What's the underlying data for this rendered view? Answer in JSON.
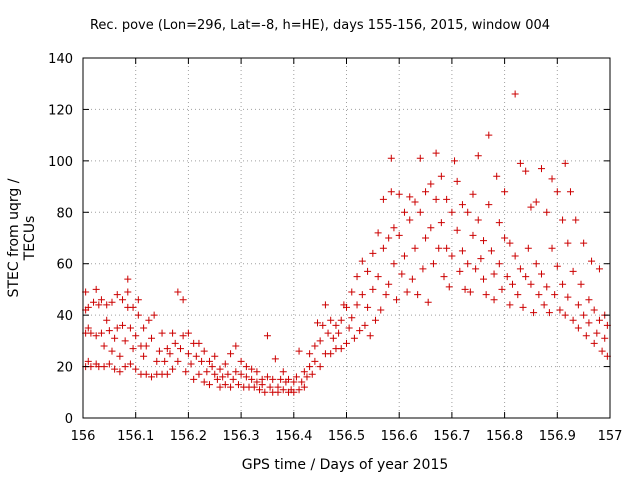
{
  "chart_data": {
    "type": "scatter",
    "title": "Rec. pove (Lon=296, Lat=-8, h=HE), days 155-156, 2015, window 004",
    "xlabel": "GPS time / Days of year 2015",
    "ylabel": "STEC from uqrg / TECUs",
    "xlim": [
      156,
      157
    ],
    "ylim": [
      0,
      140
    ],
    "xticks": [
      "156",
      "156.1",
      "156.2",
      "156.3",
      "156.4",
      "156.5",
      "156.6",
      "156.7",
      "156.8",
      "156.9",
      "157"
    ],
    "yticks": [
      "0",
      "20",
      "40",
      "60",
      "80",
      "100",
      "120",
      "140"
    ],
    "grid": true,
    "marker": "plus",
    "color": "#cc0000",
    "series": [
      {
        "points": [
          [
            156.005,
            20
          ],
          [
            156.005,
            33
          ],
          [
            156.005,
            42
          ],
          [
            156.005,
            49
          ],
          [
            156.01,
            22
          ],
          [
            156.01,
            35
          ],
          [
            156.01,
            43
          ],
          [
            156.015,
            20
          ],
          [
            156.015,
            33
          ],
          [
            156.02,
            45
          ],
          [
            156.025,
            50
          ],
          [
            156.025,
            21
          ],
          [
            156.025,
            32
          ],
          [
            156.03,
            44
          ],
          [
            156.03,
            20
          ],
          [
            156.035,
            33
          ],
          [
            156.035,
            46
          ],
          [
            156.04,
            20
          ],
          [
            156.04,
            28
          ],
          [
            156.045,
            38
          ],
          [
            156.045,
            44
          ],
          [
            156.05,
            34
          ],
          [
            156.05,
            21
          ],
          [
            156.055,
            26
          ],
          [
            156.055,
            45
          ],
          [
            156.06,
            19
          ],
          [
            156.06,
            31
          ],
          [
            156.065,
            35
          ],
          [
            156.065,
            48
          ],
          [
            156.07,
            18
          ],
          [
            156.07,
            24
          ],
          [
            156.075,
            36
          ],
          [
            156.075,
            46
          ],
          [
            156.08,
            20
          ],
          [
            156.08,
            30
          ],
          [
            156.085,
            43
          ],
          [
            156.085,
            49
          ],
          [
            156.085,
            54
          ],
          [
            156.09,
            21
          ],
          [
            156.09,
            35
          ],
          [
            156.095,
            43
          ],
          [
            156.095,
            27
          ],
          [
            156.1,
            19
          ],
          [
            156.1,
            32
          ],
          [
            156.105,
            40
          ],
          [
            156.105,
            46
          ],
          [
            156.11,
            17
          ],
          [
            156.11,
            28
          ],
          [
            156.115,
            24
          ],
          [
            156.115,
            35
          ],
          [
            156.12,
            17
          ],
          [
            156.12,
            28
          ],
          [
            156.125,
            38
          ],
          [
            156.13,
            16
          ],
          [
            156.13,
            31
          ],
          [
            156.135,
            40
          ],
          [
            156.14,
            17
          ],
          [
            156.14,
            22
          ],
          [
            156.145,
            26
          ],
          [
            156.15,
            33
          ],
          [
            156.15,
            17
          ],
          [
            156.155,
            22
          ],
          [
            156.16,
            27
          ],
          [
            156.16,
            17
          ],
          [
            156.165,
            25
          ],
          [
            156.17,
            33
          ],
          [
            156.17,
            19
          ],
          [
            156.175,
            29
          ],
          [
            156.18,
            49
          ],
          [
            156.18,
            22
          ],
          [
            156.185,
            27
          ],
          [
            156.19,
            46
          ],
          [
            156.19,
            32
          ],
          [
            156.195,
            18
          ],
          [
            156.2,
            33
          ],
          [
            156.2,
            25
          ],
          [
            156.205,
            21
          ],
          [
            156.21,
            29
          ],
          [
            156.21,
            15
          ],
          [
            156.215,
            24
          ],
          [
            156.22,
            29
          ],
          [
            156.22,
            17
          ],
          [
            156.225,
            22
          ],
          [
            156.23,
            26
          ],
          [
            156.23,
            14
          ],
          [
            156.235,
            18
          ],
          [
            156.24,
            22
          ],
          [
            156.24,
            13
          ],
          [
            156.245,
            20
          ],
          [
            156.25,
            17
          ],
          [
            156.25,
            24
          ],
          [
            156.255,
            15
          ],
          [
            156.26,
            19
          ],
          [
            156.26,
            12
          ],
          [
            156.265,
            16
          ],
          [
            156.27,
            21
          ],
          [
            156.27,
            13
          ],
          [
            156.275,
            17
          ],
          [
            156.28,
            25
          ],
          [
            156.28,
            12
          ],
          [
            156.285,
            15
          ],
          [
            156.29,
            28
          ],
          [
            156.29,
            18
          ],
          [
            156.295,
            13
          ],
          [
            156.3,
            22
          ],
          [
            156.3,
            17
          ],
          [
            156.305,
            12
          ],
          [
            156.31,
            20
          ],
          [
            156.31,
            16
          ],
          [
            156.315,
            12
          ],
          [
            156.32,
            19
          ],
          [
            156.32,
            15
          ],
          [
            156.325,
            12
          ],
          [
            156.33,
            18
          ],
          [
            156.33,
            14
          ],
          [
            156.335,
            11
          ],
          [
            156.34,
            15
          ],
          [
            156.34,
            13
          ],
          [
            156.345,
            10
          ],
          [
            156.35,
            32
          ],
          [
            156.35,
            16
          ],
          [
            156.355,
            12
          ],
          [
            156.36,
            10
          ],
          [
            156.36,
            15
          ],
          [
            156.365,
            23
          ],
          [
            156.37,
            12
          ],
          [
            156.37,
            10
          ],
          [
            156.375,
            15
          ],
          [
            156.38,
            11
          ],
          [
            156.38,
            18
          ],
          [
            156.385,
            14
          ],
          [
            156.39,
            10
          ],
          [
            156.39,
            15
          ],
          [
            156.395,
            11
          ],
          [
            156.4,
            14
          ],
          [
            156.4,
            10
          ],
          [
            156.405,
            16
          ],
          [
            156.41,
            11
          ],
          [
            156.41,
            26
          ],
          [
            156.415,
            14
          ],
          [
            156.42,
            18
          ],
          [
            156.42,
            12
          ],
          [
            156.425,
            16
          ],
          [
            156.43,
            20
          ],
          [
            156.43,
            25
          ],
          [
            156.435,
            17
          ],
          [
            156.44,
            28
          ],
          [
            156.44,
            22
          ],
          [
            156.445,
            37
          ],
          [
            156.45,
            20
          ],
          [
            156.45,
            30
          ],
          [
            156.455,
            36
          ],
          [
            156.46,
            25
          ],
          [
            156.46,
            44
          ],
          [
            156.465,
            33
          ],
          [
            156.47,
            38
          ],
          [
            156.47,
            25
          ],
          [
            156.475,
            31
          ],
          [
            156.48,
            36
          ],
          [
            156.48,
            27
          ],
          [
            156.485,
            33
          ],
          [
            156.49,
            38
          ],
          [
            156.49,
            27
          ],
          [
            156.495,
            44
          ],
          [
            156.5,
            43
          ],
          [
            156.5,
            29
          ],
          [
            156.505,
            35
          ],
          [
            156.51,
            49
          ],
          [
            156.51,
            39
          ],
          [
            156.515,
            31
          ],
          [
            156.52,
            55
          ],
          [
            156.52,
            44
          ],
          [
            156.525,
            34
          ],
          [
            156.53,
            61
          ],
          [
            156.53,
            48
          ],
          [
            156.535,
            36
          ],
          [
            156.54,
            57
          ],
          [
            156.54,
            43
          ],
          [
            156.545,
            32
          ],
          [
            156.55,
            64
          ],
          [
            156.55,
            50
          ],
          [
            156.555,
            38
          ],
          [
            156.56,
            72
          ],
          [
            156.56,
            55
          ],
          [
            156.565,
            42
          ],
          [
            156.57,
            85
          ],
          [
            156.57,
            66
          ],
          [
            156.575,
            48
          ],
          [
            156.58,
            70
          ],
          [
            156.58,
            52
          ],
          [
            156.585,
            88
          ],
          [
            156.585,
            101
          ],
          [
            156.59,
            74
          ],
          [
            156.59,
            60
          ],
          [
            156.595,
            46
          ],
          [
            156.6,
            87
          ],
          [
            156.6,
            71
          ],
          [
            156.605,
            56
          ],
          [
            156.61,
            80
          ],
          [
            156.61,
            63
          ],
          [
            156.615,
            49
          ],
          [
            156.62,
            86
          ],
          [
            156.62,
            77
          ],
          [
            156.625,
            54
          ],
          [
            156.63,
            84
          ],
          [
            156.63,
            66
          ],
          [
            156.635,
            48
          ],
          [
            156.64,
            101
          ],
          [
            156.64,
            80
          ],
          [
            156.645,
            58
          ],
          [
            156.65,
            88
          ],
          [
            156.65,
            70
          ],
          [
            156.655,
            45
          ],
          [
            156.66,
            91
          ],
          [
            156.66,
            74
          ],
          [
            156.665,
            60
          ],
          [
            156.67,
            103
          ],
          [
            156.67,
            85
          ],
          [
            156.675,
            66
          ],
          [
            156.68,
            94
          ],
          [
            156.68,
            76
          ],
          [
            156.685,
            55
          ],
          [
            156.69,
            85
          ],
          [
            156.69,
            66
          ],
          [
            156.695,
            51
          ],
          [
            156.7,
            80
          ],
          [
            156.7,
            63
          ],
          [
            156.705,
            100
          ],
          [
            156.71,
            92
          ],
          [
            156.71,
            73
          ],
          [
            156.715,
            57
          ],
          [
            156.72,
            83
          ],
          [
            156.72,
            65
          ],
          [
            156.725,
            50
          ],
          [
            156.73,
            80
          ],
          [
            156.73,
            60
          ],
          [
            156.735,
            49
          ],
          [
            156.74,
            87
          ],
          [
            156.74,
            71
          ],
          [
            156.745,
            58
          ],
          [
            156.75,
            102
          ],
          [
            156.75,
            77
          ],
          [
            156.755,
            62
          ],
          [
            156.76,
            69
          ],
          [
            156.76,
            54
          ],
          [
            156.765,
            48
          ],
          [
            156.77,
            110
          ],
          [
            156.77,
            83
          ],
          [
            156.775,
            65
          ],
          [
            156.78,
            56
          ],
          [
            156.78,
            46
          ],
          [
            156.785,
            94
          ],
          [
            156.79,
            76
          ],
          [
            156.79,
            60
          ],
          [
            156.795,
            50
          ],
          [
            156.8,
            88
          ],
          [
            156.8,
            70
          ],
          [
            156.805,
            55
          ],
          [
            156.81,
            44
          ],
          [
            156.81,
            68
          ],
          [
            156.815,
            52
          ],
          [
            156.82,
            126
          ],
          [
            156.82,
            63
          ],
          [
            156.825,
            48
          ],
          [
            156.83,
            99
          ],
          [
            156.83,
            58
          ],
          [
            156.835,
            43
          ],
          [
            156.84,
            96
          ],
          [
            156.84,
            55
          ],
          [
            156.845,
            66
          ],
          [
            156.85,
            82
          ],
          [
            156.85,
            52
          ],
          [
            156.855,
            41
          ],
          [
            156.86,
            84
          ],
          [
            156.86,
            60
          ],
          [
            156.865,
            48
          ],
          [
            156.87,
            97
          ],
          [
            156.87,
            56
          ],
          [
            156.875,
            44
          ],
          [
            156.88,
            80
          ],
          [
            156.88,
            51
          ],
          [
            156.885,
            41
          ],
          [
            156.89,
            93
          ],
          [
            156.89,
            66
          ],
          [
            156.895,
            48
          ],
          [
            156.9,
            88
          ],
          [
            156.9,
            59
          ],
          [
            156.905,
            42
          ],
          [
            156.91,
            77
          ],
          [
            156.91,
            52
          ],
          [
            156.915,
            99
          ],
          [
            156.915,
            40
          ],
          [
            156.92,
            68
          ],
          [
            156.92,
            47
          ],
          [
            156.925,
            88
          ],
          [
            156.93,
            57
          ],
          [
            156.93,
            38
          ],
          [
            156.935,
            77
          ],
          [
            156.94,
            44
          ],
          [
            156.94,
            35
          ],
          [
            156.945,
            52
          ],
          [
            156.95,
            68
          ],
          [
            156.95,
            40
          ],
          [
            156.955,
            32
          ],
          [
            156.96,
            46
          ],
          [
            156.96,
            37
          ],
          [
            156.965,
            61
          ],
          [
            156.97,
            42
          ],
          [
            156.97,
            29
          ],
          [
            156.975,
            33
          ],
          [
            156.98,
            58
          ],
          [
            156.98,
            38
          ],
          [
            156.985,
            26
          ],
          [
            156.99,
            40
          ],
          [
            156.99,
            31
          ],
          [
            156.995,
            24
          ],
          [
            156.995,
            36
          ]
        ]
      }
    ]
  }
}
